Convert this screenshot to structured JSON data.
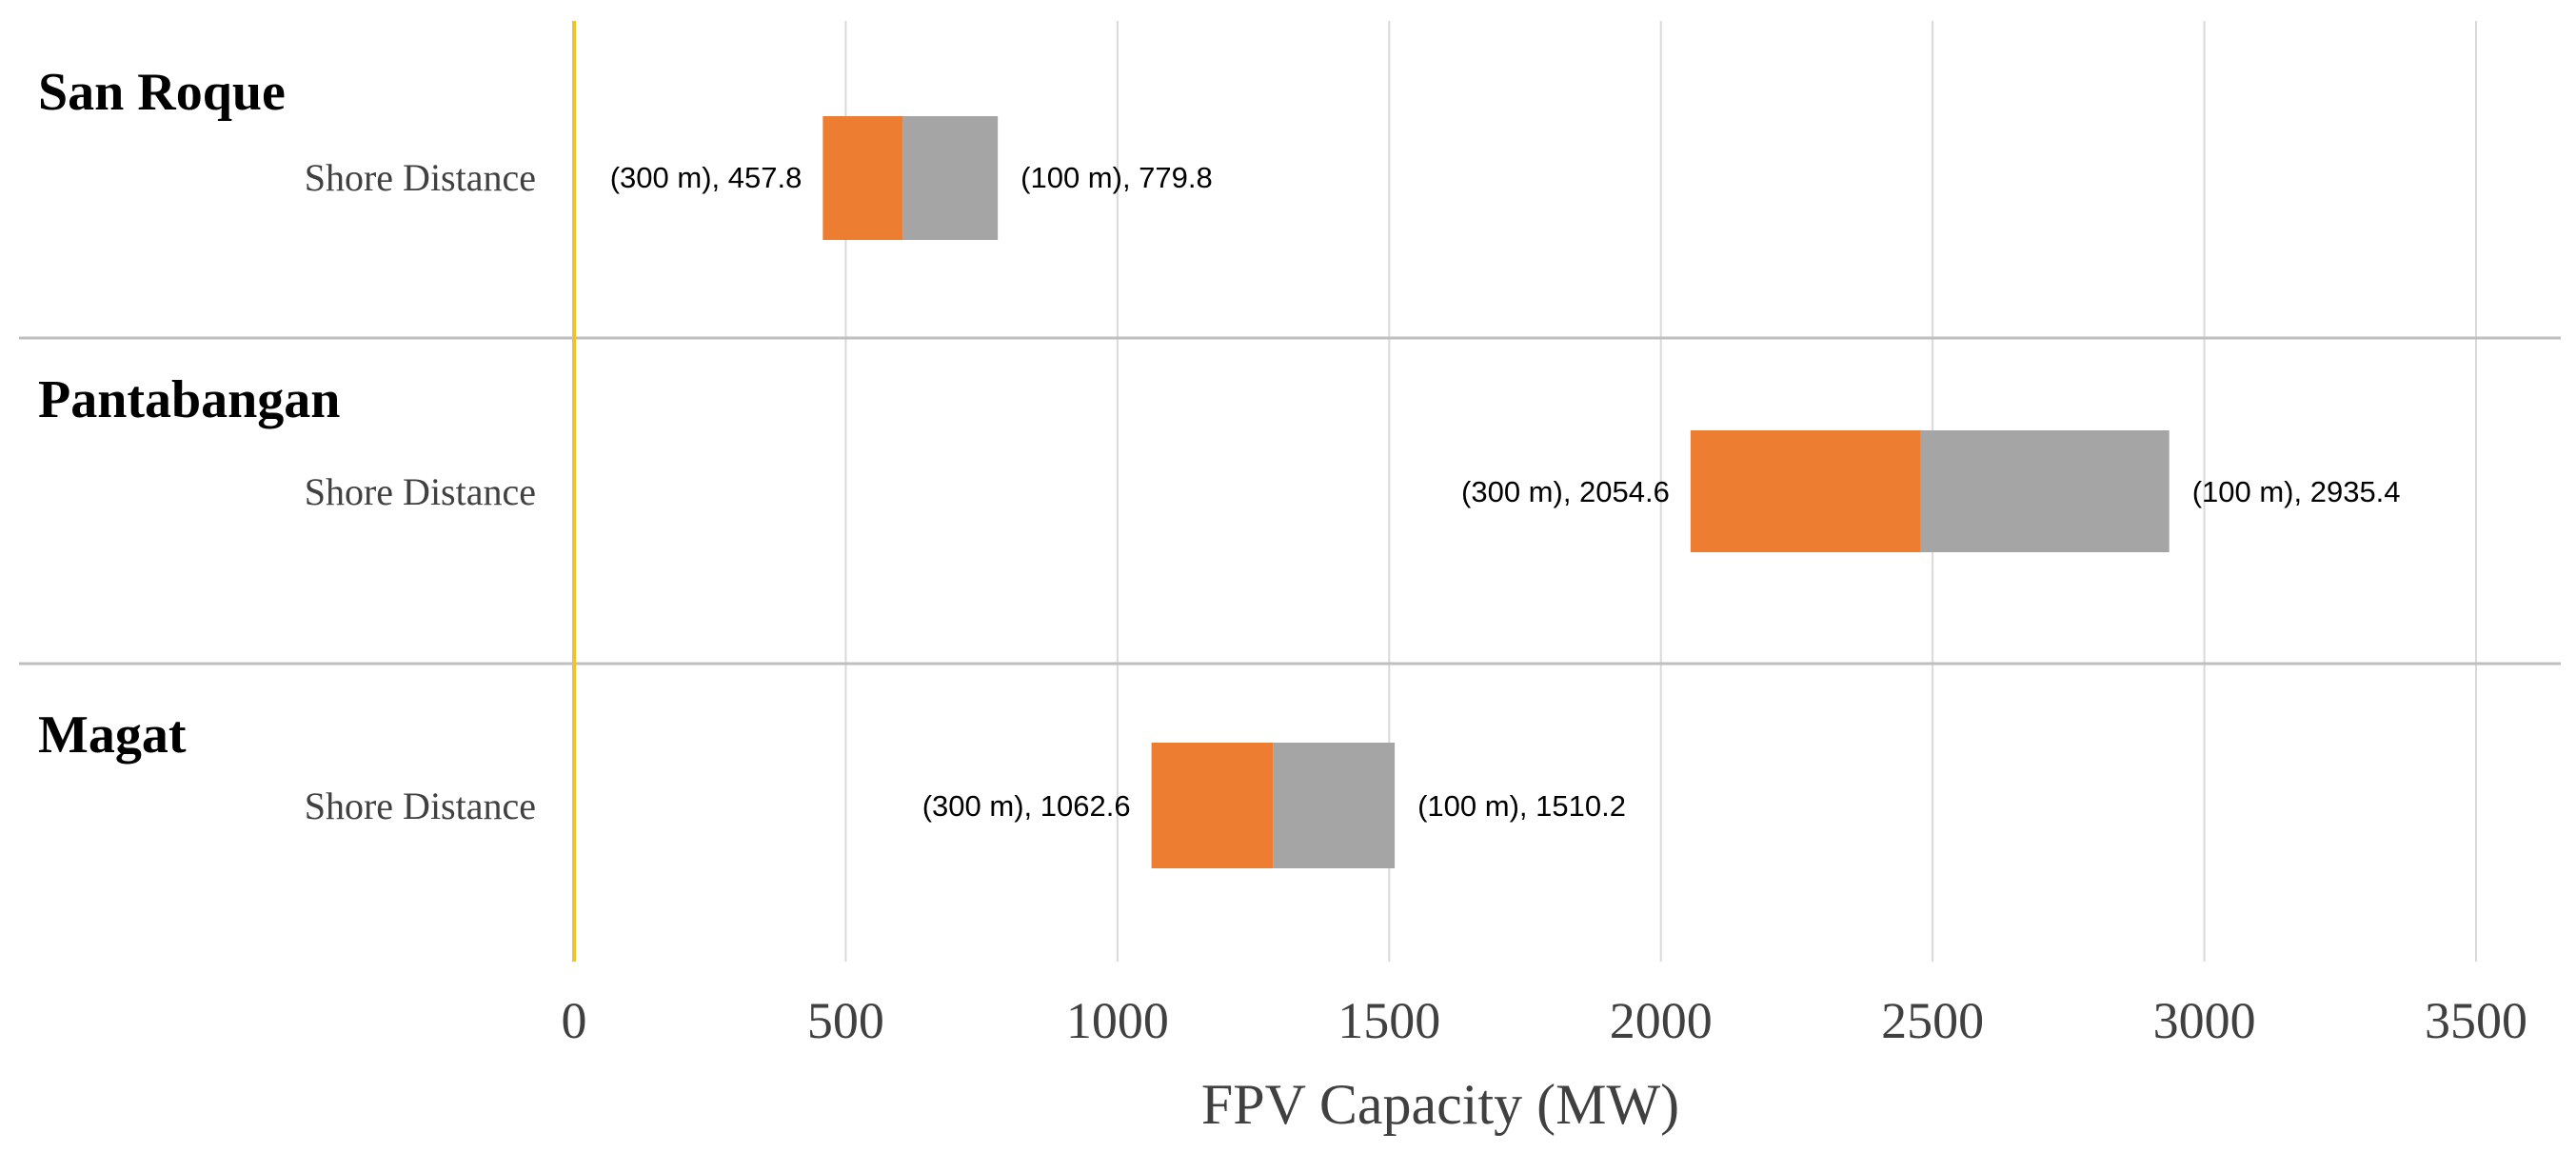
{
  "chart_data": {
    "type": "bar",
    "subtype": "floating-range",
    "xlabel": "FPV Capacity (MW)",
    "xlim": [
      0,
      3500
    ],
    "xticks": [
      0,
      500,
      1000,
      1500,
      2000,
      2500,
      3000,
      3500
    ],
    "grid": true,
    "reference_line": {
      "x": 0,
      "color": "#F2C12E"
    },
    "series_colors": {
      "low": "#ED7D31",
      "high": "#A5A5A5"
    },
    "groups": [
      {
        "name": "San Roque",
        "row_label": "Shore Distance",
        "low": {
          "label": "(300 m), 457.8",
          "value": 457.8
        },
        "mid": 605,
        "high": {
          "label": "(100 m), 779.8",
          "value": 779.8
        }
      },
      {
        "name": "Pantabangan",
        "row_label": "Shore Distance",
        "low": {
          "label": "(300 m), 2054.6",
          "value": 2054.6
        },
        "mid": 2478,
        "high": {
          "label": "(100 m), 2935.4",
          "value": 2935.4
        }
      },
      {
        "name": "Magat",
        "row_label": "Shore Distance",
        "low": {
          "label": "(300 m), 1062.6",
          "value": 1062.6
        },
        "mid": 1286,
        "high": {
          "label": "(100 m), 1510.2",
          "value": 1510.2
        }
      }
    ]
  }
}
